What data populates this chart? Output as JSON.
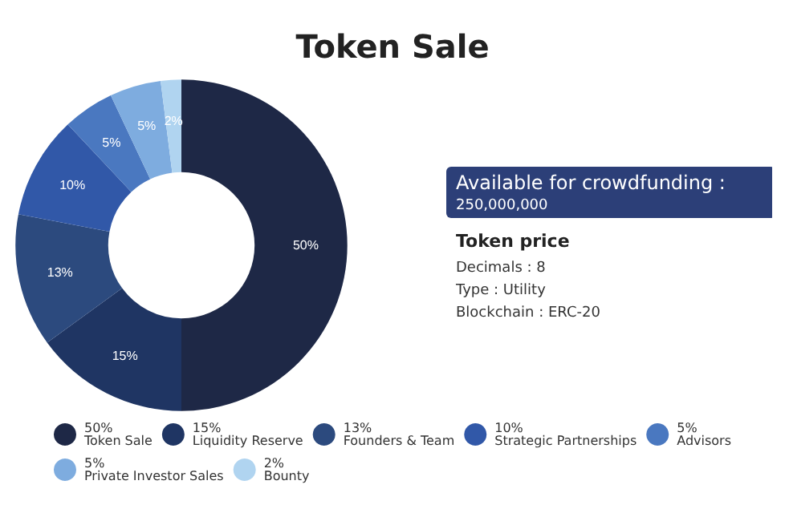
{
  "chart_data": {
    "type": "donut",
    "title": "Token Sale",
    "categories": [
      "Token Sale",
      "Liquidity Reserve",
      "Founders & Team",
      "Strategic Partnerships",
      "Advisors",
      "Private Investor Sales",
      "Bounty"
    ],
    "values": [
      50,
      15,
      13,
      10,
      5,
      5,
      2
    ],
    "value_labels": [
      "50%",
      "15%",
      "13%",
      "10%",
      "5%",
      "5%",
      "2%"
    ],
    "colors": [
      "#1e2846",
      "#1f3563",
      "#2c4a7e",
      "#3158a8",
      "#4a78c0",
      "#7eacdf",
      "#b0d4f0"
    ],
    "legend": "bottom",
    "annotations": [
      "Available for crowdfunding :",
      "250,000,000",
      "Token price",
      "Decimals : 8",
      "Type : Utility",
      "Blockchain : ERC-20"
    ]
  }
}
